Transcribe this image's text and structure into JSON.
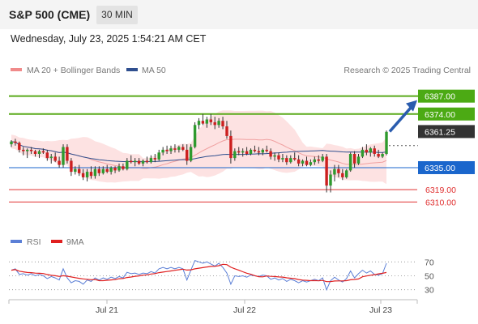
{
  "header": {
    "instrument": "S&P 500 (CME)",
    "timeframe": "30 MIN"
  },
  "datetime": "Wednesday, July 23, 2025 1:54:21 AM CET",
  "legend": {
    "ma20_label": "MA 20 + Bollinger Bands",
    "ma20_color": "#f08a8a",
    "ma50_label": "MA 50",
    "ma50_color": "#2f4f8f",
    "credit": "Research © 2025 Trading Central"
  },
  "rsi_legend": {
    "rsi_label": "RSI",
    "rsi_color": "#5b7fd6",
    "ma9_label": "9MA",
    "ma9_color": "#e02020"
  },
  "chart_data": {
    "type": "candlestick",
    "x_ticks": [
      "Jul 21",
      "Jul 22",
      "Jul 23"
    ],
    "price_range": [
      6292,
      6398
    ],
    "current_price": 6361.25,
    "forecast_target": 6387.0,
    "levels": [
      {
        "value": 6387.0,
        "label": "6387.00",
        "kind": "resistance",
        "color": "#5aaa1a"
      },
      {
        "value": 6374.0,
        "label": "6374.00",
        "kind": "resistance",
        "color": "#5aaa1a"
      },
      {
        "value": 6335.0,
        "label": "6335.00",
        "kind": "pivot",
        "color": "#1a66cc"
      },
      {
        "value": 6319.0,
        "label": "6319.00",
        "kind": "support",
        "color": "#e03030"
      },
      {
        "value": 6310.0,
        "label": "6310.00",
        "kind": "support",
        "color": "#e03030"
      }
    ],
    "current_label": "6361.25",
    "candles": [
      [
        6352,
        6355,
        6350,
        6354
      ],
      [
        6354,
        6356,
        6351,
        6353
      ],
      [
        6353,
        6354,
        6346,
        6348
      ],
      [
        6348,
        6350,
        6344,
        6347
      ],
      [
        6347,
        6349,
        6342,
        6348
      ],
      [
        6348,
        6350,
        6345,
        6347
      ],
      [
        6347,
        6348,
        6343,
        6345
      ],
      [
        6345,
        6348,
        6342,
        6347
      ],
      [
        6347,
        6349,
        6345,
        6346
      ],
      [
        6346,
        6348,
        6340,
        6342
      ],
      [
        6342,
        6345,
        6338,
        6343
      ],
      [
        6343,
        6346,
        6339,
        6340
      ],
      [
        6340,
        6343,
        6335,
        6337
      ],
      [
        6337,
        6352,
        6335,
        6350
      ],
      [
        6350,
        6352,
        6338,
        6340
      ],
      [
        6340,
        6342,
        6329,
        6332
      ],
      [
        6332,
        6336,
        6330,
        6334
      ],
      [
        6334,
        6337,
        6329,
        6331
      ],
      [
        6331,
        6334,
        6326,
        6328
      ],
      [
        6328,
        6334,
        6325,
        6332
      ],
      [
        6332,
        6336,
        6327,
        6329
      ],
      [
        6329,
        6336,
        6327,
        6334
      ],
      [
        6334,
        6336,
        6329,
        6331
      ],
      [
        6331,
        6336,
        6330,
        6334
      ],
      [
        6334,
        6337,
        6331,
        6332
      ],
      [
        6332,
        6336,
        6330,
        6335
      ],
      [
        6335,
        6336,
        6331,
        6333
      ],
      [
        6333,
        6338,
        6332,
        6336
      ],
      [
        6336,
        6338,
        6333,
        6334
      ],
      [
        6334,
        6342,
        6333,
        6340
      ],
      [
        6340,
        6344,
        6338,
        6339
      ],
      [
        6339,
        6342,
        6336,
        6340
      ],
      [
        6340,
        6342,
        6337,
        6338
      ],
      [
        6338,
        6341,
        6336,
        6340
      ],
      [
        6340,
        6343,
        6338,
        6339
      ],
      [
        6339,
        6344,
        6338,
        6342
      ],
      [
        6342,
        6345,
        6339,
        6341
      ],
      [
        6341,
        6348,
        6340,
        6346
      ],
      [
        6346,
        6350,
        6344,
        6348
      ],
      [
        6348,
        6351,
        6345,
        6347
      ],
      [
        6347,
        6351,
        6345,
        6349
      ],
      [
        6349,
        6352,
        6346,
        6348
      ],
      [
        6348,
        6351,
        6346,
        6350
      ],
      [
        6350,
        6352,
        6347,
        6348
      ],
      [
        6348,
        6352,
        6337,
        6340
      ],
      [
        6340,
        6352,
        6339,
        6350
      ],
      [
        6350,
        6368,
        6349,
        6366
      ],
      [
        6366,
        6371,
        6363,
        6369
      ],
      [
        6369,
        6374,
        6366,
        6367
      ],
      [
        6367,
        6372,
        6364,
        6370
      ],
      [
        6370,
        6374,
        6366,
        6368
      ],
      [
        6368,
        6372,
        6363,
        6366
      ],
      [
        6366,
        6371,
        6364,
        6369
      ],
      [
        6369,
        6372,
        6363,
        6365
      ],
      [
        6365,
        6369,
        6356,
        6358
      ],
      [
        6358,
        6362,
        6338,
        6342
      ],
      [
        6342,
        6349,
        6340,
        6347
      ],
      [
        6347,
        6350,
        6344,
        6346
      ],
      [
        6346,
        6349,
        6343,
        6347
      ],
      [
        6347,
        6350,
        6344,
        6345
      ],
      [
        6345,
        6349,
        6344,
        6348
      ],
      [
        6348,
        6351,
        6346,
        6347
      ],
      [
        6347,
        6350,
        6344,
        6346
      ],
      [
        6346,
        6349,
        6344,
        6348
      ],
      [
        6348,
        6351,
        6346,
        6347
      ],
      [
        6347,
        6349,
        6341,
        6343
      ],
      [
        6343,
        6346,
        6340,
        6344
      ],
      [
        6344,
        6346,
        6339,
        6341
      ],
      [
        6341,
        6345,
        6339,
        6342
      ],
      [
        6342,
        6344,
        6337,
        6339
      ],
      [
        6339,
        6344,
        6338,
        6342
      ],
      [
        6342,
        6346,
        6340,
        6341
      ],
      [
        6341,
        6344,
        6336,
        6338
      ],
      [
        6338,
        6341,
        6336,
        6340
      ],
      [
        6340,
        6343,
        6336,
        6337
      ],
      [
        6337,
        6341,
        6336,
        6339
      ],
      [
        6339,
        6343,
        6337,
        6341
      ],
      [
        6341,
        6344,
        6338,
        6340
      ],
      [
        6340,
        6345,
        6339,
        6343
      ],
      [
        6343,
        6345,
        6317,
        6322
      ],
      [
        6322,
        6333,
        6317,
        6330
      ],
      [
        6330,
        6337,
        6325,
        6334
      ],
      [
        6334,
        6337,
        6328,
        6331
      ],
      [
        6331,
        6334,
        6326,
        6328
      ],
      [
        6328,
        6334,
        6327,
        6333
      ],
      [
        6333,
        6346,
        6332,
        6345
      ],
      [
        6345,
        6347,
        6335,
        6338
      ],
      [
        6338,
        6345,
        6337,
        6343
      ],
      [
        6343,
        6350,
        6342,
        6348
      ],
      [
        6348,
        6352,
        6344,
        6346
      ],
      [
        6346,
        6350,
        6343,
        6349
      ],
      [
        6349,
        6351,
        6343,
        6345
      ],
      [
        6345,
        6348,
        6342,
        6343
      ],
      [
        6343,
        6346,
        6342,
        6345
      ],
      [
        6345,
        6362,
        6344,
        6361
      ]
    ],
    "rsi": [
      58,
      60,
      52,
      53,
      51,
      53,
      50,
      52,
      50,
      46,
      49,
      47,
      44,
      60,
      47,
      40,
      43,
      42,
      38,
      44,
      42,
      47,
      44,
      47,
      45,
      48,
      46,
      49,
      47,
      55,
      53,
      54,
      52,
      54,
      53,
      56,
      54,
      60,
      62,
      60,
      62,
      60,
      62,
      60,
      44,
      58,
      72,
      70,
      68,
      70,
      67,
      64,
      68,
      62,
      54,
      38,
      50,
      49,
      50,
      48,
      51,
      50,
      49,
      51,
      50,
      45,
      47,
      44,
      46,
      42,
      45,
      43,
      40,
      43,
      41,
      43,
      45,
      43,
      47,
      30,
      43,
      48,
      44,
      41,
      46,
      57,
      47,
      53,
      58,
      54,
      57,
      52,
      51,
      53,
      68
    ],
    "rsi_ticks": [
      70,
      50,
      30
    ],
    "rsi_range": [
      18,
      82
    ]
  }
}
